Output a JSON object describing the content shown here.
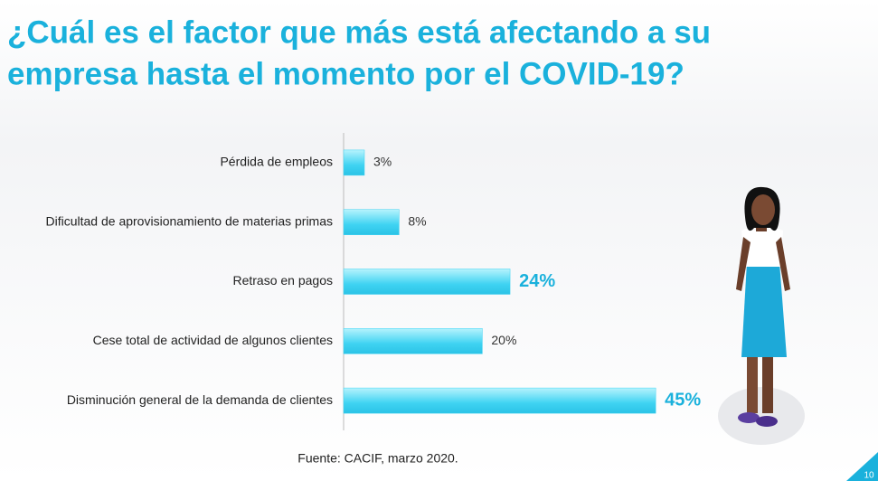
{
  "chart_data": {
    "type": "hbar",
    "title": [
      "¿Cuál es el factor que más está afectando a su",
      "empresa hasta el momento por el COVID-19?"
    ],
    "categories": [
      "Pérdida de empleos",
      "Dificultad de aprovisionamiento de materias primas",
      "Retraso en pagos",
      "Cese total de actividad de algunos clientes",
      "Disminución general de la demanda de clientes"
    ],
    "values": [
      3,
      8,
      24,
      20,
      45
    ],
    "value_labels": [
      "3%",
      "8%",
      "24%",
      "20%",
      "45%"
    ],
    "emphasized_labels": [
      false,
      false,
      true,
      false,
      true
    ],
    "color": "#3fd3f2",
    "source": "Fuente: CACIF, marzo 2020.",
    "page_number": "10"
  }
}
